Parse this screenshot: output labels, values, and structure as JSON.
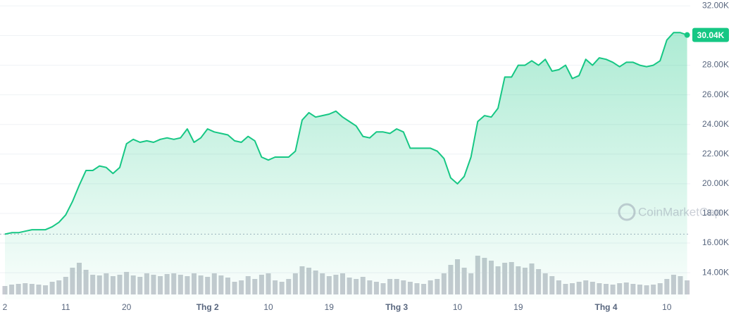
{
  "chart_data": {
    "type": "line",
    "categories": [
      "2",
      null,
      null,
      null,
      null,
      null,
      null,
      null,
      null,
      "11",
      null,
      null,
      null,
      null,
      null,
      null,
      null,
      null,
      "20",
      null,
      null,
      null,
      null,
      null,
      null,
      null,
      null,
      null,
      null,
      null,
      "Thg 2",
      null,
      null,
      null,
      null,
      null,
      null,
      null,
      null,
      "10",
      null,
      null,
      null,
      null,
      null,
      null,
      null,
      null,
      "19",
      null,
      null,
      null,
      null,
      null,
      null,
      null,
      null,
      null,
      "Thg 3",
      null,
      null,
      null,
      null,
      null,
      null,
      null,
      null,
      "10",
      null,
      null,
      null,
      null,
      null,
      null,
      null,
      null,
      "19",
      null,
      null,
      null,
      null,
      null,
      null,
      null,
      null,
      null,
      null,
      null,
      null,
      "Thg 4",
      null,
      null,
      null,
      null,
      null,
      null,
      null,
      null,
      "10",
      null,
      null,
      null
    ],
    "values": [
      16600,
      16700,
      16700,
      16800,
      16900,
      16900,
      16900,
      17100,
      17400,
      17900,
      18800,
      19900,
      20900,
      20900,
      21200,
      21100,
      20700,
      21100,
      22700,
      23000,
      22800,
      22900,
      22800,
      23000,
      23100,
      23000,
      23100,
      23700,
      22800,
      23100,
      23700,
      23500,
      23400,
      23300,
      22900,
      22800,
      23200,
      22900,
      21800,
      21600,
      21800,
      21800,
      21800,
      22200,
      24300,
      24800,
      24500,
      24600,
      24700,
      24900,
      24500,
      24200,
      23900,
      23200,
      23100,
      23500,
      23500,
      23400,
      23700,
      23500,
      22400,
      22400,
      22400,
      22400,
      22200,
      21700,
      20400,
      20000,
      20500,
      21800,
      24200,
      24600,
      24500,
      25100,
      27200,
      27200,
      28000,
      28000,
      28300,
      28000,
      28400,
      27600,
      27700,
      28000,
      27100,
      27300,
      28400,
      28000,
      28500,
      28400,
      28200,
      27900,
      28200,
      28200,
      28000,
      27900,
      28000,
      28300,
      29700,
      30200,
      30200,
      30040
    ],
    "color": "#16c784",
    "volume": {
      "color": "#c7cad1",
      "lim": [
        0,
        120
      ],
      "values": [
        12,
        14,
        15,
        16,
        15,
        14,
        13,
        18,
        20,
        25,
        38,
        45,
        35,
        28,
        27,
        30,
        26,
        28,
        32,
        27,
        25,
        30,
        28,
        26,
        29,
        30,
        28,
        26,
        30,
        27,
        25,
        30,
        27,
        24,
        18,
        20,
        26,
        22,
        28,
        30,
        20,
        18,
        22,
        30,
        40,
        38,
        34,
        30,
        26,
        28,
        30,
        24,
        22,
        25,
        20,
        18,
        16,
        22,
        22,
        20,
        18,
        16,
        15,
        20,
        22,
        30,
        42,
        50,
        38,
        30,
        55,
        52,
        48,
        40,
        45,
        46,
        40,
        38,
        44,
        36,
        30,
        26,
        20,
        15,
        16,
        18,
        20,
        18,
        16,
        15,
        14,
        16,
        17,
        15,
        14,
        13,
        14,
        16,
        22,
        28,
        26,
        20
      ]
    },
    "ylim": [
      12200,
      32400
    ],
    "yticks": [
      {
        "value": 14000,
        "label": "14.00K"
      },
      {
        "value": 16000,
        "label": "16.00K"
      },
      {
        "value": 18000,
        "label": "18.00K"
      },
      {
        "value": 20000,
        "label": "20.00K"
      },
      {
        "value": 22000,
        "label": "22.00K"
      },
      {
        "value": 24000,
        "label": "24.00K"
      },
      {
        "value": 26000,
        "label": "26.00K"
      },
      {
        "value": 28000,
        "label": "28.00K"
      },
      {
        "value": 30000,
        "label": "30.00K"
      },
      {
        "value": 32000,
        "label": "32.00K"
      }
    ],
    "grid": true,
    "last_price": {
      "value": 30040,
      "label": "30.04K"
    },
    "watermark": "CoinMarketCap"
  }
}
